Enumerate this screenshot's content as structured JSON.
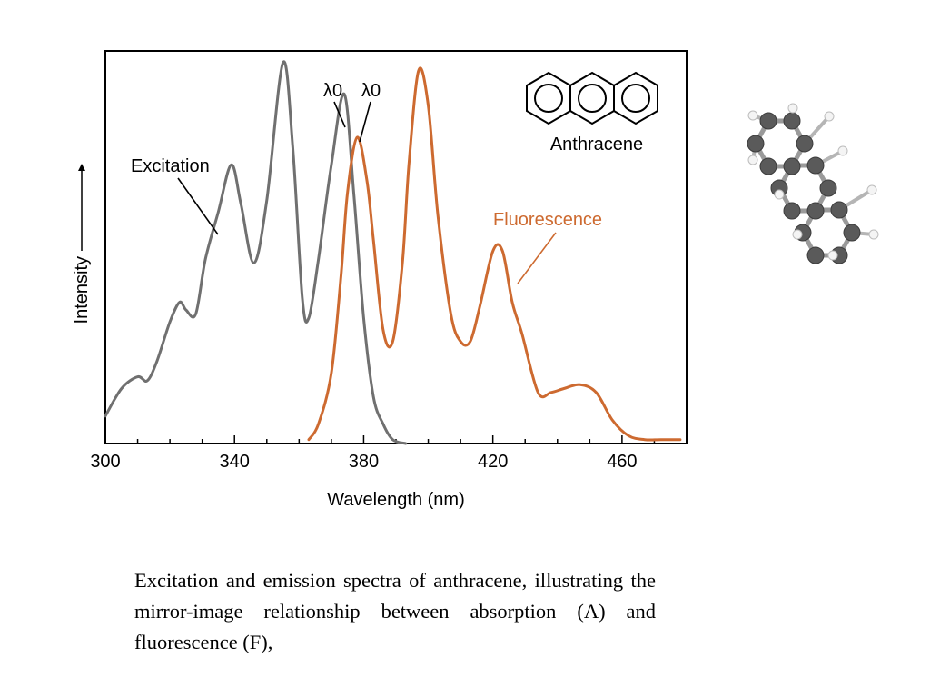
{
  "chart_data": {
    "type": "line",
    "xlabel": "Wavelength (nm)",
    "ylabel": "Intensity",
    "xlim": [
      300,
      480
    ],
    "ylim": [
      0,
      1.0
    ],
    "x_ticks": [
      300,
      340,
      380,
      420,
      460
    ],
    "grid": false,
    "series": [
      {
        "name": "Excitation",
        "color": "#707070",
        "x": [
          300,
          305,
          310,
          313,
          316,
          320,
          323,
          325,
          328,
          331,
          335,
          339,
          342,
          346,
          350,
          355,
          358,
          361,
          363,
          366,
          370,
          374,
          377,
          380,
          383,
          386,
          389,
          393
        ],
        "y": [
          0.07,
          0.14,
          0.17,
          0.16,
          0.21,
          0.31,
          0.36,
          0.34,
          0.33,
          0.47,
          0.59,
          0.71,
          0.61,
          0.46,
          0.62,
          0.97,
          0.76,
          0.37,
          0.32,
          0.47,
          0.71,
          0.89,
          0.63,
          0.32,
          0.12,
          0.05,
          0.01,
          0.0
        ]
      },
      {
        "name": "Fluorescence",
        "color": "#cd6a30",
        "x": [
          363,
          366,
          370,
          373,
          375,
          378,
          381,
          383,
          386,
          389,
          392,
          394,
          397,
          400,
          403,
          407,
          410,
          413,
          416,
          420,
          423,
          426,
          429,
          434,
          438,
          442,
          447,
          452,
          457,
          462,
          467,
          472,
          478
        ],
        "y": [
          0.01,
          0.05,
          0.18,
          0.43,
          0.64,
          0.78,
          0.67,
          0.52,
          0.29,
          0.26,
          0.46,
          0.71,
          0.95,
          0.86,
          0.58,
          0.33,
          0.26,
          0.26,
          0.35,
          0.49,
          0.49,
          0.36,
          0.28,
          0.13,
          0.13,
          0.14,
          0.15,
          0.13,
          0.06,
          0.02,
          0.01,
          0.01,
          0.01
        ]
      }
    ],
    "annotations": [
      "λ0",
      "λ0"
    ],
    "inset_label": "Anthracene"
  },
  "caption": "Excitation and emission spectra of anthracene, illustrating the mirror-image relationship between absorption (A) and fluorescence (F),",
  "colors": {
    "excitation": "#707070",
    "fluorescence": "#cd6a30",
    "axis": "#000000"
  },
  "icons": [
    "anthracene-structure-icon",
    "anthracene-ball-stick-icon"
  ]
}
